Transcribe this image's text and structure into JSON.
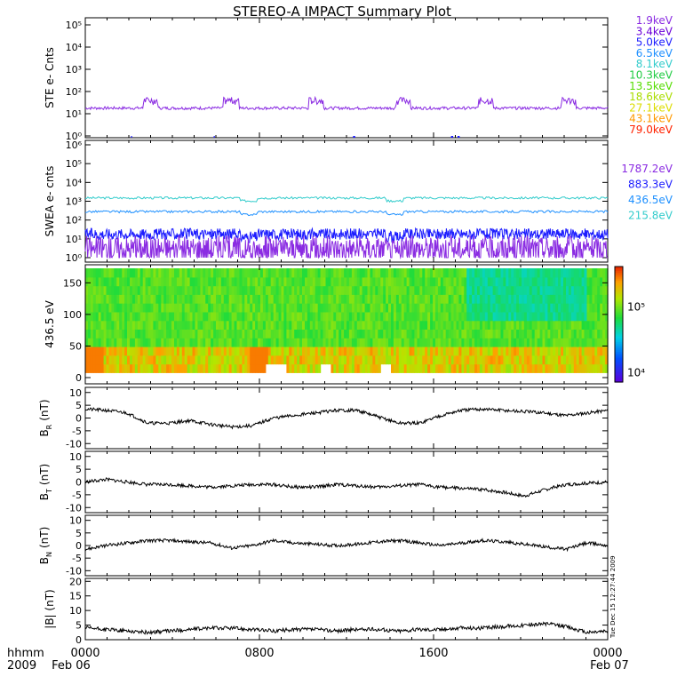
{
  "title": "STEREO-A IMPACT Summary Plot",
  "footer": {
    "row1": "hhmm",
    "row2": "2009",
    "date_start": "Feb 06",
    "date_end": "Feb 07"
  },
  "timestamp": "Tue Dec 15 12:27:44 2009",
  "colors": {
    "purple": "#8a2be2",
    "blue": "#1c1cff",
    "cyan": "#33cccc",
    "green": "#22cc44",
    "yellow": "#dddd00",
    "orange": "#ff9900",
    "red": "#ff2200"
  },
  "chart_data": [
    {
      "type": "line",
      "id": "ste",
      "ylabel": "STE e- Cnts",
      "yscale": "log",
      "ylim": [
        1,
        100000
      ],
      "yticks": [
        "10⁰",
        "10¹",
        "10²",
        "10³",
        "10⁴",
        "10⁵"
      ],
      "xlim": [
        0,
        24
      ],
      "xticks": [
        "0000",
        "0800",
        "1600",
        "0000"
      ],
      "legend": [
        {
          "label": "1.9keV",
          "color": "#8a2be2"
        },
        {
          "label": "3.4keV",
          "color": "#6a00d8"
        },
        {
          "label": "5.0keV",
          "color": "#1c1cff"
        },
        {
          "label": "6.5keV",
          "color": "#1e90ff"
        },
        {
          "label": "8.1keV",
          "color": "#33cccc"
        },
        {
          "label": "10.3keV",
          "color": "#22cc44"
        },
        {
          "label": "13.5keV",
          "color": "#55dd00"
        },
        {
          "label": "18.6keV",
          "color": "#aadd00"
        },
        {
          "label": "27.1keV",
          "color": "#dddd00"
        },
        {
          "label": "43.1keV",
          "color": "#ff9900"
        },
        {
          "label": "79.0keV",
          "color": "#ff2200"
        }
      ],
      "series": [
        {
          "name": "1.9keV",
          "color": "#8a2be2",
          "baseline": 18,
          "spikes": [
            3,
            6.7,
            10.6,
            14.6,
            18.4,
            22.2
          ],
          "spike_value": 50
        }
      ]
    },
    {
      "type": "line",
      "id": "swea",
      "ylabel": "SWEA e- cnts",
      "yscale": "log",
      "ylim": [
        1,
        1000000
      ],
      "yticks": [
        "10⁰",
        "10¹",
        "10²",
        "10³",
        "10⁴",
        "10⁵",
        "10⁶"
      ],
      "xlim": [
        0,
        24
      ],
      "legend": [
        {
          "label": "1787.2eV",
          "color": "#8a2be2"
        },
        {
          "label": "883.3eV",
          "color": "#1c1cff"
        },
        {
          "label": "436.5eV",
          "color": "#1e90ff"
        },
        {
          "label": "215.8eV",
          "color": "#33cccc"
        }
      ],
      "series": [
        {
          "name": "215.8eV",
          "color": "#33cccc",
          "level": 1500
        },
        {
          "name": "436.5eV",
          "color": "#1e90ff",
          "level": 280
        },
        {
          "name": "883.3eV",
          "color": "#1c1cff",
          "level": 18
        },
        {
          "name": "1787.2eV",
          "color": "#8a2be2",
          "level": 3
        }
      ]
    },
    {
      "type": "heatmap",
      "id": "pad",
      "ylabel": "436.5 eV",
      "ylim": [
        0,
        180
      ],
      "yticks": [
        0,
        50,
        100,
        150
      ],
      "xlim": [
        0,
        24
      ],
      "colorbar": {
        "scale": "log",
        "range": [
          7000,
          400000
        ],
        "ticks": [
          "10⁵",
          "10⁴"
        ]
      }
    },
    {
      "type": "line",
      "id": "br",
      "ylabel": "B",
      "ylabel_sub": "R",
      "ylabel_unit": "(nT)",
      "ylim": [
        -12,
        12
      ],
      "yticks": [
        -10,
        -5,
        0,
        5,
        10
      ],
      "xlim": [
        0,
        24
      ],
      "series": [
        {
          "name": "BR",
          "values": [
            3.5,
            3.0,
            2.0,
            -2.0,
            -2.0,
            -1.0,
            -2.5,
            -3.5,
            -3.0,
            0.0,
            1.0,
            2.0,
            3.0,
            3.0,
            0.5,
            -2.0,
            -2.0,
            1.0,
            3.0,
            3.5,
            3.0,
            2.5,
            2.0,
            1.0,
            2.0,
            3.0
          ]
        }
      ]
    },
    {
      "type": "line",
      "id": "bt",
      "ylabel": "B",
      "ylabel_sub": "T",
      "ylabel_unit": "(nT)",
      "ylim": [
        -12,
        12
      ],
      "yticks": [
        -10,
        -5,
        0,
        5,
        10
      ],
      "xlim": [
        0,
        24
      ],
      "series": [
        {
          "name": "BT",
          "values": [
            0.0,
            1.0,
            0.0,
            -1.0,
            -1.0,
            -1.5,
            -2.0,
            -1.5,
            -1.0,
            -1.0,
            -2.0,
            -2.0,
            -1.0,
            -1.5,
            -2.0,
            -1.5,
            -1.0,
            -2.0,
            -2.5,
            -3.0,
            -4.0,
            -5.5,
            -3.0,
            -1.0,
            -0.5,
            0.0
          ]
        }
      ]
    },
    {
      "type": "line",
      "id": "bn",
      "ylabel": "B",
      "ylabel_sub": "N",
      "ylabel_unit": "(nT)",
      "ylim": [
        -12,
        12
      ],
      "yticks": [
        -10,
        -5,
        0,
        5,
        10
      ],
      "xlim": [
        0,
        24
      ],
      "series": [
        {
          "name": "BN",
          "values": [
            -1.5,
            0.0,
            1.0,
            2.0,
            2.0,
            1.5,
            1.0,
            -1.0,
            0.0,
            2.0,
            1.0,
            0.5,
            0.0,
            0.5,
            1.5,
            2.0,
            1.0,
            0.0,
            1.0,
            2.0,
            1.5,
            0.5,
            -0.5,
            -1.5,
            1.0,
            0.0
          ]
        }
      ]
    },
    {
      "type": "line",
      "id": "bmag",
      "ylabel": "|B| (nT)",
      "ylim": [
        0,
        21
      ],
      "yticks": [
        0,
        5,
        10,
        15,
        20
      ],
      "xlim": [
        0,
        24
      ],
      "series": [
        {
          "name": "|B|",
          "values": [
            4.0,
            3.5,
            3.0,
            2.5,
            3.0,
            3.5,
            4.0,
            4.0,
            3.5,
            3.0,
            3.5,
            3.5,
            3.0,
            3.5,
            3.5,
            3.0,
            3.5,
            3.5,
            4.0,
            4.0,
            4.5,
            5.0,
            5.5,
            4.5,
            2.5,
            3.0
          ]
        }
      ]
    }
  ]
}
